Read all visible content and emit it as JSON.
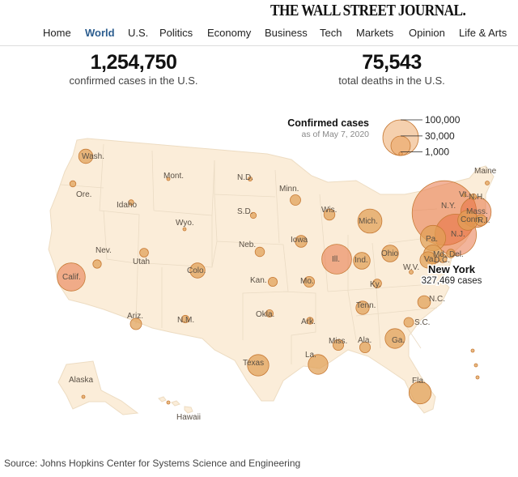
{
  "masthead": {
    "title": "THE WALL STREET JOURNAL."
  },
  "nav": {
    "items": [
      "Home",
      "World",
      "U.S.",
      "Politics",
      "Economy",
      "Business",
      "Tech",
      "Markets",
      "Opinion",
      "Life & Arts"
    ],
    "active": "World"
  },
  "stats": {
    "confirmed": {
      "value": "1,254,750",
      "label": "confirmed cases in the U.S."
    },
    "deaths": {
      "value": "75,543",
      "label": "total deaths in the U.S."
    }
  },
  "legend": {
    "title": "Confirmed cases",
    "subtitle": "as of May 7, 2020",
    "levels": [
      {
        "label": "100,000",
        "value": 100000
      },
      {
        "label": "30,000",
        "value": 30000
      },
      {
        "label": "1,000",
        "value": 1000
      }
    ]
  },
  "highlight": {
    "name": "New York",
    "value": "327,469 cases"
  },
  "states": [
    {
      "label": "Wash.",
      "cases": 16000
    },
    {
      "label": "Ore.",
      "cases": 3000
    },
    {
      "label": "Calif.",
      "cases": 62000
    },
    {
      "label": "Nev.",
      "cases": 5600
    },
    {
      "label": "Idaho",
      "cases": 2200
    },
    {
      "label": "Mont.",
      "cases": 460
    },
    {
      "label": "Wyo.",
      "cases": 640
    },
    {
      "label": "Utah",
      "cases": 6000
    },
    {
      "label": "Ariz.",
      "cases": 10000
    },
    {
      "label": "Colo.",
      "cases": 18000
    },
    {
      "label": "N.M.",
      "cases": 4500
    },
    {
      "label": "N.D.",
      "cases": 1400
    },
    {
      "label": "S.D.",
      "cases": 2900
    },
    {
      "label": "Neb.",
      "cases": 7000
    },
    {
      "label": "Kan.",
      "cases": 6500
    },
    {
      "label": "Okla.",
      "cases": 4400
    },
    {
      "label": "Texas",
      "cases": 36000
    },
    {
      "label": "Minn.",
      "cases": 8600
    },
    {
      "label": "Iowa",
      "cases": 11000
    },
    {
      "label": "Mo.",
      "cases": 9000
    },
    {
      "label": "Ark.",
      "cases": 3600
    },
    {
      "label": "La.",
      "cases": 31000
    },
    {
      "label": "Wis.",
      "cases": 9500
    },
    {
      "label": "Ill.",
      "cases": 70000
    },
    {
      "label": "Mich.",
      "cases": 46000
    },
    {
      "label": "Ind.",
      "cases": 22000
    },
    {
      "label": "Ohio",
      "cases": 22000
    },
    {
      "label": "Ky.",
      "cases": 6000
    },
    {
      "label": "Tenn.",
      "cases": 14000
    },
    {
      "label": "Miss.",
      "cases": 9000
    },
    {
      "label": "Ala.",
      "cases": 9000
    },
    {
      "label": "Ga.",
      "cases": 31000
    },
    {
      "label": "Fla.",
      "cases": 39000
    },
    {
      "label": "S.C.",
      "cases": 7500
    },
    {
      "label": "N.C.",
      "cases": 13000
    },
    {
      "label": "W.V.",
      "cases": 1300
    },
    {
      "label": "Pa.",
      "cases": 51000
    },
    {
      "label": "N.Y.",
      "cases": 327469
    },
    {
      "label": "N.J.",
      "cases": 135000
    },
    {
      "label": "Conn.",
      "cases": 32000
    },
    {
      "label": "Mass.",
      "cases": 73000
    },
    {
      "label": "R.I.",
      "cases": 10000
    },
    {
      "label": "Vt.",
      "cases": 910
    },
    {
      "label": "N.H.",
      "cases": 2800
    },
    {
      "label": "Maine",
      "cases": 1300
    },
    {
      "label": "Md.",
      "cases": 28000
    },
    {
      "label": "Del.",
      "cases": 5700
    },
    {
      "label": "D.C.",
      "cases": 5600
    },
    {
      "label": "Va.",
      "cases": 21000
    },
    {
      "label": "Alaska",
      "cases": 380
    },
    {
      "label": "Hawaii",
      "cases": 630
    },
    {
      "label": "",
      "cases": 400
    },
    {
      "label": "",
      "cases": 400
    },
    {
      "label": "",
      "cases": 400
    }
  ],
  "source": "Source: Johns Hopkins Center for Systems Science and Engineering"
}
